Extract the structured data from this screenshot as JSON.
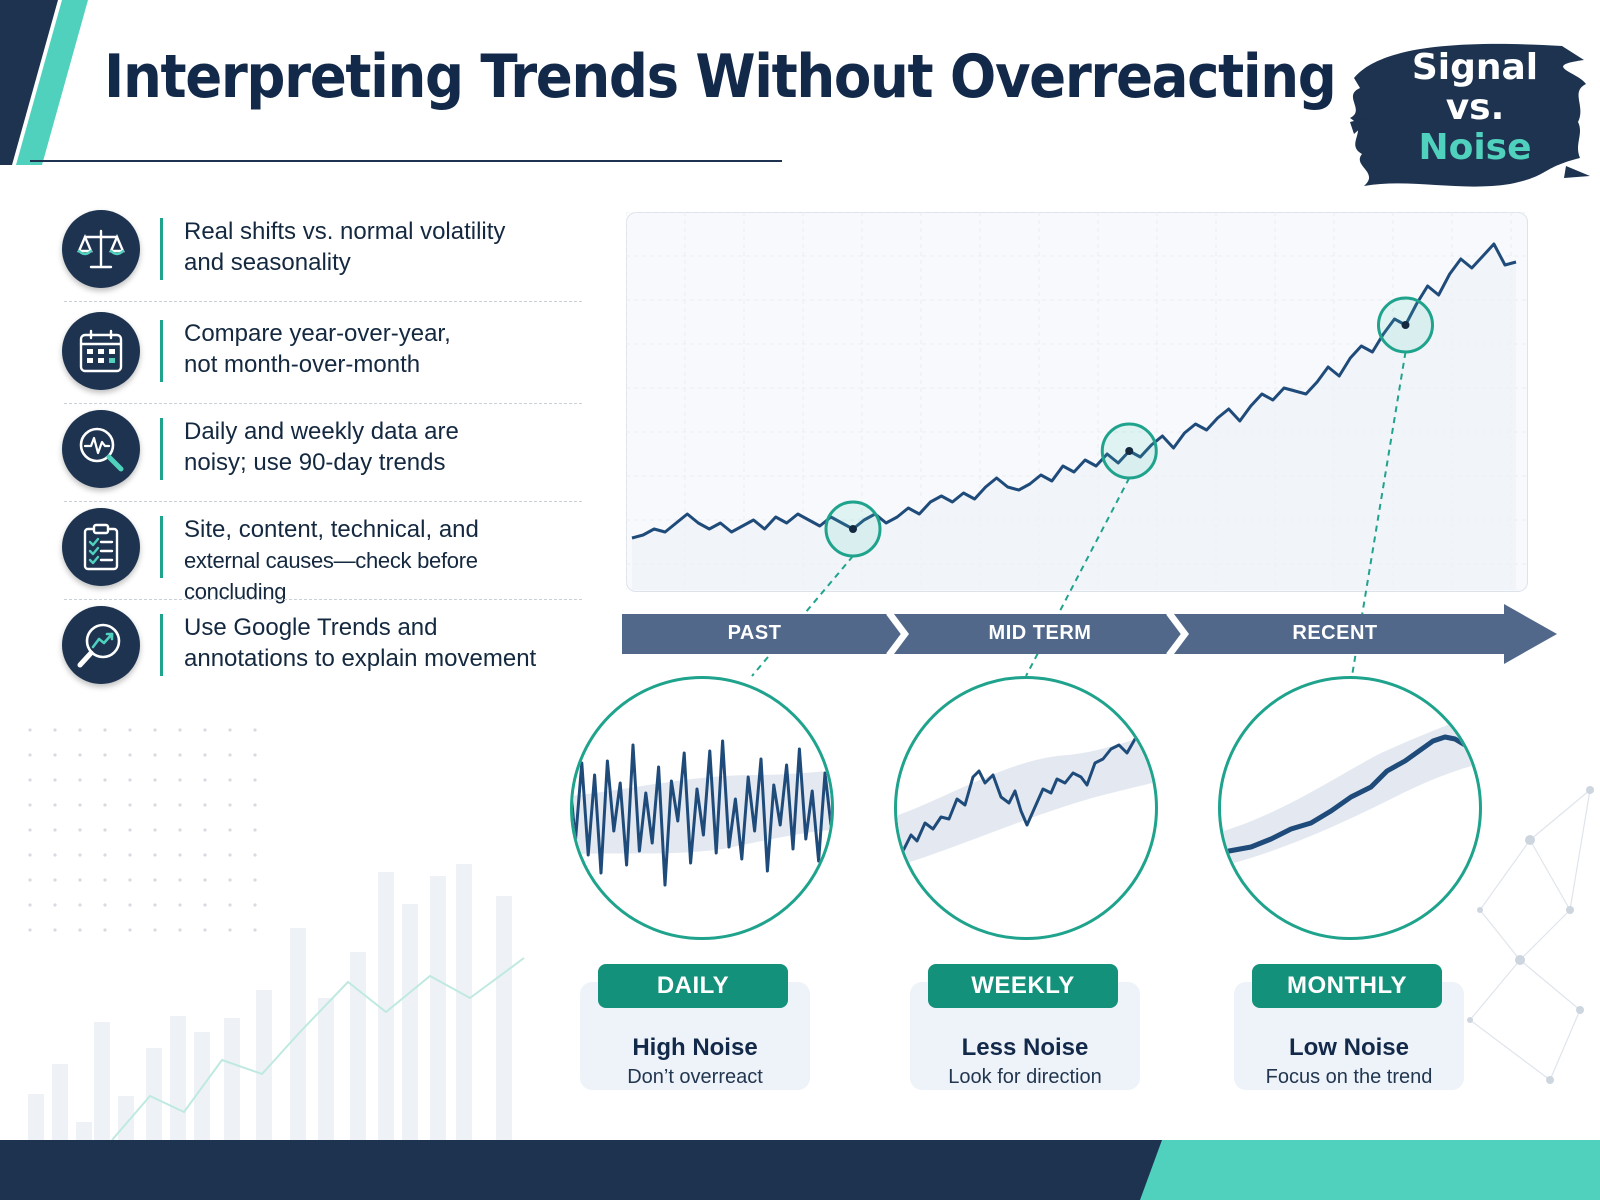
{
  "header": {
    "title": "Interpreting Trends Without Overreacting",
    "badge": {
      "line1": "Signal",
      "line2": "vs.",
      "line3": "Noise"
    }
  },
  "colors": {
    "navy": "#1d3350",
    "teal": "#1fa38c",
    "pill_green": "#13917a",
    "timeline_slate": "#52688a",
    "line_blue": "#1f4b7a"
  },
  "list": [
    {
      "icon": "scale-icon",
      "line1": "Real shifts vs. normal volatility",
      "line2": "and seasonality"
    },
    {
      "icon": "calendar-icon",
      "line1": "Compare year-over-year,",
      "line2": "not month-over-month"
    },
    {
      "icon": "pulse-magnifier-icon",
      "line1": "Daily and weekly data are",
      "line2": "noisy; use 90-day trends"
    },
    {
      "icon": "clipboard-checklist-icon",
      "line1": "Site, content, technical, and",
      "line2": "external causes—check before concluding"
    },
    {
      "icon": "trend-magnifier-icon",
      "line1": "Use Google Trends and",
      "line2": "annotations to explain movement"
    }
  ],
  "timeline": {
    "segments": [
      "PAST",
      "MID TERM",
      "RECENT"
    ]
  },
  "granularity": [
    {
      "label": "DAILY",
      "title": "High Noise",
      "subtitle": "Don’t overreact"
    },
    {
      "label": "WEEKLY",
      "title": "Less Noise",
      "subtitle": "Look for direction"
    },
    {
      "label": "MONTHLY",
      "title": "Low Noise",
      "subtitle": "Focus on the trend"
    }
  ],
  "chart_data": {
    "type": "line",
    "title": "",
    "xlabel": "",
    "ylabel": "",
    "grid": true,
    "y": [
      28,
      29,
      31,
      30,
      33,
      36,
      33,
      31,
      33,
      30,
      32,
      34,
      31,
      35,
      33,
      36,
      34,
      32,
      35,
      33,
      31,
      34,
      36,
      33,
      35,
      38,
      36,
      40,
      42,
      40,
      43,
      41,
      45,
      48,
      45,
      44,
      46,
      49,
      47,
      52,
      50,
      54,
      52,
      56,
      53,
      57,
      55,
      59,
      62,
      58,
      63,
      66,
      64,
      68,
      71,
      67,
      72,
      76,
      74,
      78,
      77,
      76,
      80,
      85,
      82,
      88,
      92,
      90,
      96,
      101,
      99,
      106,
      112,
      109,
      116,
      121,
      118,
      122,
      126,
      119,
      120
    ],
    "highlights": [
      {
        "index": 20,
        "segment": "PAST",
        "zoom": "DAILY"
      },
      {
        "index": 45,
        "segment": "MID TERM",
        "zoom": "WEEKLY"
      },
      {
        "index": 70,
        "segment": "RECENT",
        "zoom": "MONTHLY"
      }
    ]
  }
}
